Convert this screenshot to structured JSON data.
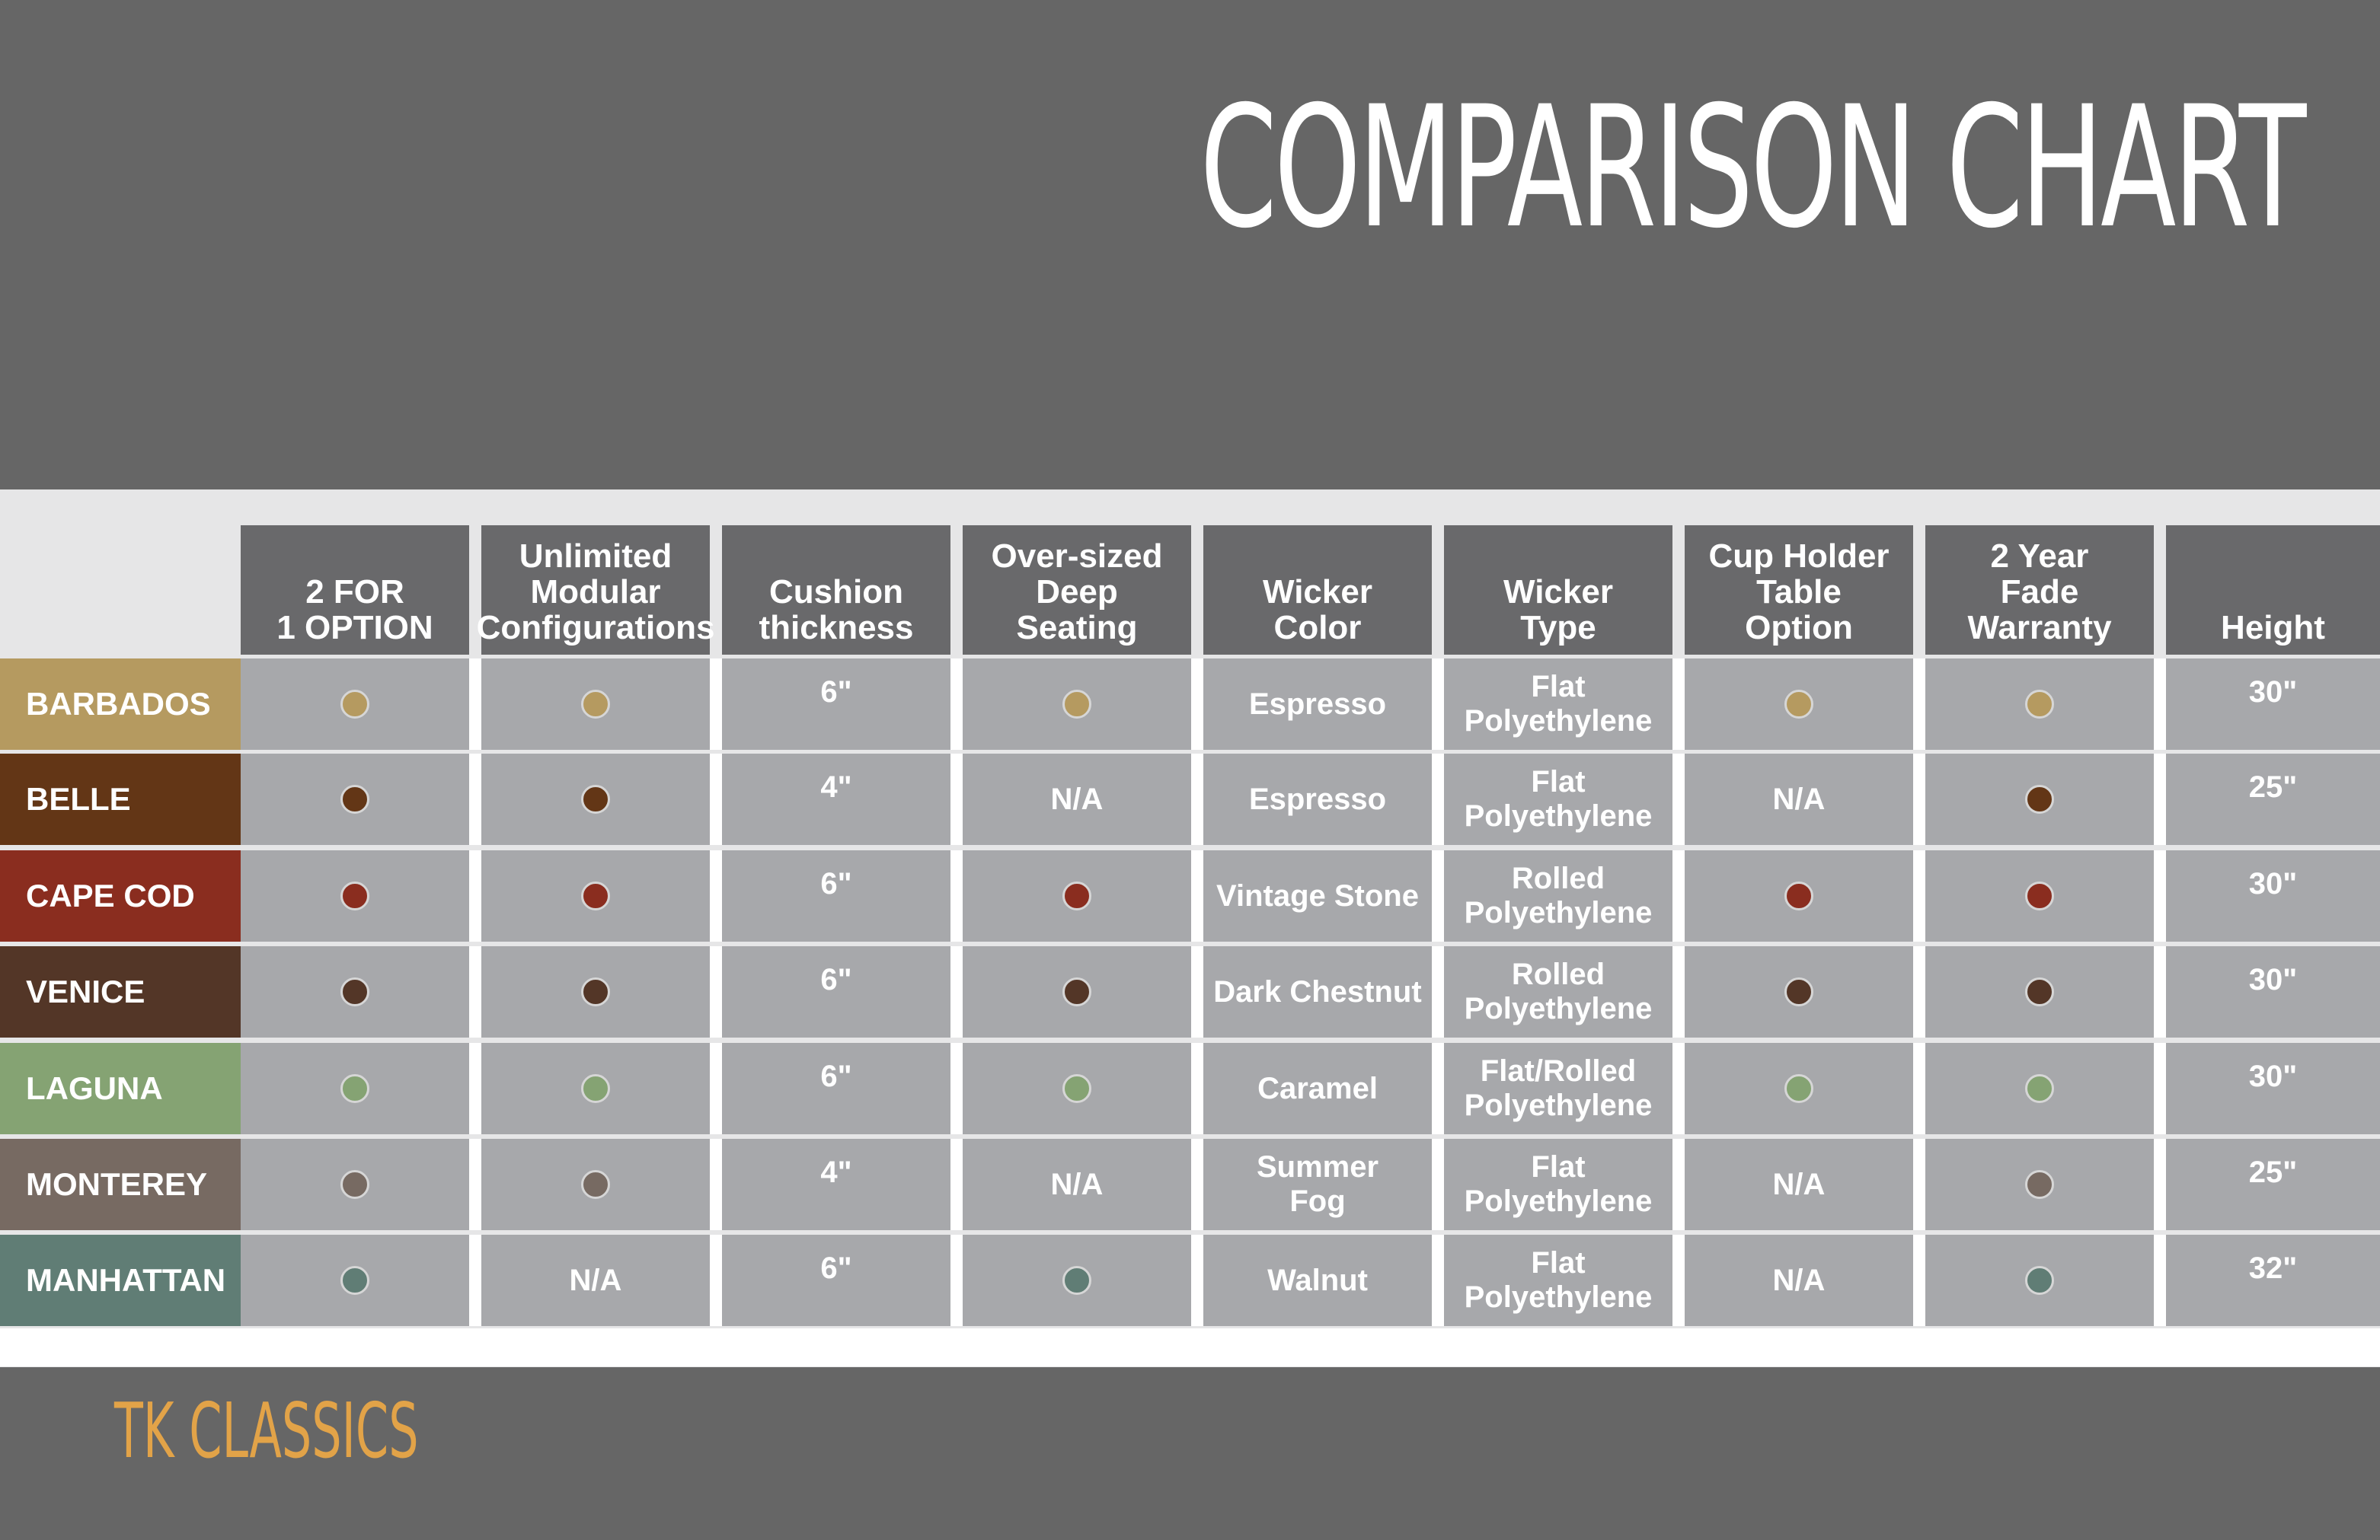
{
  "title": "COMPARISON CHART",
  "brand": "TK CLASSICS",
  "colors": {
    "background": "#666666",
    "header_cell": "#69696b",
    "data_cell": "#a7a8ab",
    "brand_text": "#e2a348"
  },
  "chart_data": {
    "type": "table",
    "columns": [
      "2 FOR\n1 OPTION",
      "Unlimited\nModular\nConfigurations",
      "Cushion\nthickness",
      "Over-sized\nDeep\nSeating",
      "Wicker\nColor",
      "Wicker\nType",
      "Cup Holder\nTable\nOption",
      "2 Year\nFade\nWarranty",
      "Height"
    ],
    "rows": [
      {
        "name": "BARBADOS",
        "color": "#b59a60",
        "cells": [
          "dot",
          "dot",
          "6\"",
          "dot",
          "Espresso",
          "Flat\nPolyethylene",
          "dot",
          "dot",
          "30\""
        ]
      },
      {
        "name": "BELLE",
        "color": "#633616",
        "cells": [
          "dot",
          "dot",
          "4\"",
          "N/A",
          "Espresso",
          "Flat\nPolyethylene",
          "N/A",
          "dot",
          "25\""
        ]
      },
      {
        "name": "CAPE COD",
        "color": "#8a2d1f",
        "cells": [
          "dot",
          "dot",
          "6\"",
          "dot",
          "Vintage Stone",
          "Rolled\nPolyethylene",
          "dot",
          "dot",
          "30\""
        ]
      },
      {
        "name": "VENICE",
        "color": "#533627",
        "cells": [
          "dot",
          "dot",
          "6\"",
          "dot",
          "Dark Chestnut",
          "Rolled\nPolyethylene",
          "dot",
          "dot",
          "30\""
        ]
      },
      {
        "name": "LAGUNA",
        "color": "#85a373",
        "cells": [
          "dot",
          "dot",
          "6\"",
          "dot",
          "Caramel",
          "Flat/Rolled\nPolyethylene",
          "dot",
          "dot",
          "30\""
        ]
      },
      {
        "name": "MONTEREY",
        "color": "#776a62",
        "cells": [
          "dot",
          "dot",
          "4\"",
          "N/A",
          "Summer\nFog",
          "Flat\nPolyethylene",
          "N/A",
          "dot",
          "25\""
        ]
      },
      {
        "name": "MANHATTAN",
        "color": "#607d75",
        "cells": [
          "dot",
          "N/A",
          "6\"",
          "dot",
          "Walnut",
          "Flat\nPolyethylene",
          "N/A",
          "dot",
          "32\""
        ]
      }
    ]
  }
}
